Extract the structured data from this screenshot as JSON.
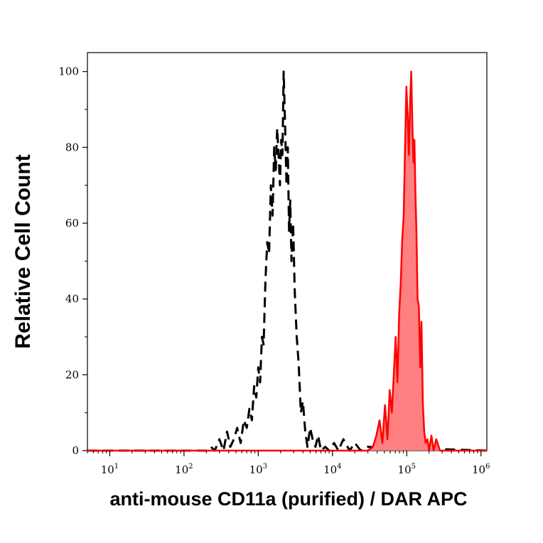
{
  "chart_data": {
    "type": "area",
    "xlabel": "anti-mouse CD11a (purified) / DAR APC",
    "ylabel": "Relative Cell Count",
    "xscale": "log",
    "xlim": [
      5,
      1200000
    ],
    "ylim": [
      0,
      105
    ],
    "x_ticks": [
      {
        "base": "10",
        "exp": "1",
        "value": 10
      },
      {
        "base": "10",
        "exp": "2",
        "value": 100
      },
      {
        "base": "10",
        "exp": "3",
        "value": 1000
      },
      {
        "base": "10",
        "exp": "4",
        "value": 10000
      },
      {
        "base": "10",
        "exp": "5",
        "value": 100000
      },
      {
        "base": "10",
        "exp": "6",
        "value": 1000000
      }
    ],
    "y_ticks": [
      "0",
      "20",
      "40",
      "60",
      "80",
      "100"
    ],
    "grid": false,
    "series": [
      {
        "style": "dashed",
        "color": "#000000",
        "fill": "none",
        "x": [
          5,
          200,
          230,
          260,
          300,
          340,
          380,
          420,
          470,
          520,
          580,
          640,
          700,
          760,
          820,
          880,
          940,
          1000,
          1060,
          1120,
          1180,
          1250,
          1320,
          1400,
          1480,
          1560,
          1640,
          1720,
          1800,
          1880,
          1960,
          2040,
          2120,
          2200,
          2300,
          2400,
          2500,
          2600,
          2700,
          2800,
          2950,
          3100,
          3300,
          3500,
          3750,
          4000,
          4300,
          4600,
          5000,
          5400,
          5900,
          6400,
          7000,
          8000,
          9000,
          10500,
          12000,
          14000,
          17000,
          20000,
          24000,
          30000,
          1200000
        ],
        "values": [
          0,
          0,
          1,
          0,
          3,
          0,
          5,
          1,
          3,
          6,
          2,
          8,
          6,
          11,
          8,
          17,
          14,
          22,
          18,
          30,
          28,
          45,
          55,
          52,
          70,
          62,
          80,
          74,
          85,
          78,
          70,
          82,
          78,
          100,
          86,
          70,
          80,
          58,
          66,
          50,
          60,
          42,
          30,
          23,
          10,
          13,
          5,
          1,
          6,
          3,
          1,
          4,
          0,
          1,
          0,
          2,
          0,
          3,
          0,
          2,
          0,
          1,
          0
        ]
      },
      {
        "style": "solid",
        "color": "#ff0000",
        "fill": "#ff8080",
        "x": [
          5,
          25000,
          30000,
          35000,
          39000,
          43000,
          47000,
          51000,
          55000,
          59000,
          63000,
          67000,
          71000,
          75000,
          79000,
          83000,
          87000,
          91000,
          95000,
          99000,
          103000,
          107000,
          111000,
          115000,
          119000,
          123000,
          127000,
          131000,
          135000,
          140000,
          146000,
          152000,
          158000,
          165000,
          172000,
          180000,
          190000,
          200000,
          215000,
          230000,
          250000,
          280000,
          320000,
          1200000
        ],
        "values": [
          0,
          0,
          0,
          1,
          4,
          8,
          2,
          12,
          3,
          16,
          10,
          20,
          30,
          18,
          36,
          44,
          56,
          62,
          80,
          96,
          88,
          78,
          92,
          100,
          86,
          76,
          82,
          68,
          58,
          40,
          38,
          22,
          34,
          12,
          5,
          2,
          3,
          0,
          4,
          0,
          3,
          0,
          0,
          0
        ]
      }
    ]
  }
}
